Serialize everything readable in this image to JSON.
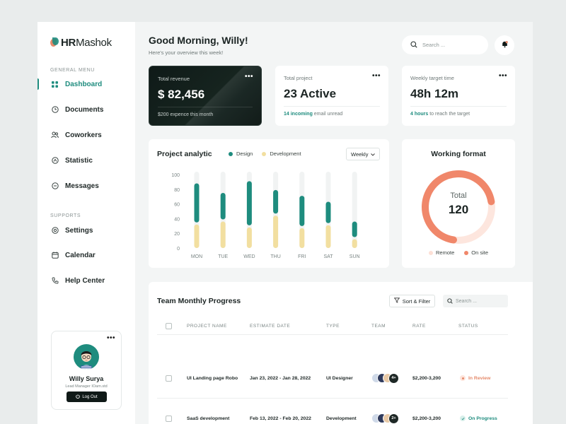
{
  "brand": {
    "logo_hr": "HR",
    "logo_rest": "Mashok"
  },
  "menu": {
    "general_heading": "GENERAL MENU",
    "general": [
      {
        "label": "Dashboard",
        "icon": "grid-icon",
        "active": true
      },
      {
        "label": "Documents",
        "icon": "document-icon"
      },
      {
        "label": "Coworkers",
        "icon": "users-icon"
      },
      {
        "label": "Statistic",
        "icon": "statistic-icon"
      },
      {
        "label": "Messages",
        "icon": "message-icon"
      }
    ],
    "supports_heading": "SUPPORTS",
    "supports": [
      {
        "label": "Settings",
        "icon": "gear-icon"
      },
      {
        "label": "Calendar",
        "icon": "calendar-icon"
      },
      {
        "label": "Help Center",
        "icon": "phone-icon"
      }
    ]
  },
  "user": {
    "name": "Willy Surya",
    "role": "Lead Manager IOam.std",
    "logout": "Log Out",
    "more": "•••"
  },
  "header": {
    "greeting": "Good Morning, Willy!",
    "subtitle": "Here's your overview this week!",
    "search_placeholder": "Search ..."
  },
  "stats": {
    "revenue": {
      "label": "Total revenue",
      "value": "$ 82,456",
      "foot": "$200 expence this month"
    },
    "project": {
      "label": "Total project",
      "value": "23 Active",
      "foot_highlight": "14 incoming",
      "foot_rest": " email unread"
    },
    "target": {
      "label": "Weekly target time",
      "value": "48h 12m",
      "foot_highlight": "4 hours",
      "foot_rest": " to reach the target"
    },
    "more": "•••"
  },
  "analytic": {
    "title": "Project analytic",
    "legend_design": "Design",
    "legend_development": "Development",
    "period": "Weekly"
  },
  "chart_data": {
    "type": "bar",
    "title": "Project analytic",
    "categories": [
      "MON",
      "TUE",
      "WED",
      "THU",
      "FRI",
      "SAT",
      "SUN"
    ],
    "series": [
      {
        "name": "Design",
        "values": [
          88,
          75,
          91,
          79,
          71,
          63,
          36
        ],
        "color": "#1e8c7e"
      },
      {
        "name": "Development",
        "values": [
          32,
          36,
          28,
          44,
          27,
          31,
          12
        ],
        "color": "#f2dfa0"
      }
    ],
    "ylim": [
      0,
      100
    ],
    "yticks": [
      0,
      20,
      40,
      60,
      80,
      100
    ],
    "legend": "top"
  },
  "format": {
    "title": "Working format",
    "center_label": "Total",
    "center_value": "120",
    "legend_remote": "Remote",
    "legend_onsite": "On site",
    "remote_fraction": 0.3,
    "onsite_fraction": 0.7
  },
  "team": {
    "title": "Team Monthly Progress",
    "sort_label": "Sort & Filter",
    "search_placeholder": "Search ...",
    "columns": [
      "PROJECT NAME",
      "ESTIMATE DATE",
      "TYPE",
      "TEAM",
      "RATE",
      "STATUS"
    ],
    "rows": [
      {
        "project": "UI Landing page Robo",
        "date": "Jan 23, 2022 - Jan 28, 2022",
        "type": "UI Designer",
        "team_more": "4+",
        "rate": "$2,200-3,200",
        "status": "In Review",
        "status_color": "#e58a6b"
      },
      {
        "project": "SaaS development",
        "date": "Feb 13, 2022 - Feb 20, 2022",
        "type": "Development",
        "team_more": "2+",
        "rate": "$2,200-3,200",
        "status": "On Progress",
        "status_color": "#1e8c7e"
      }
    ]
  }
}
